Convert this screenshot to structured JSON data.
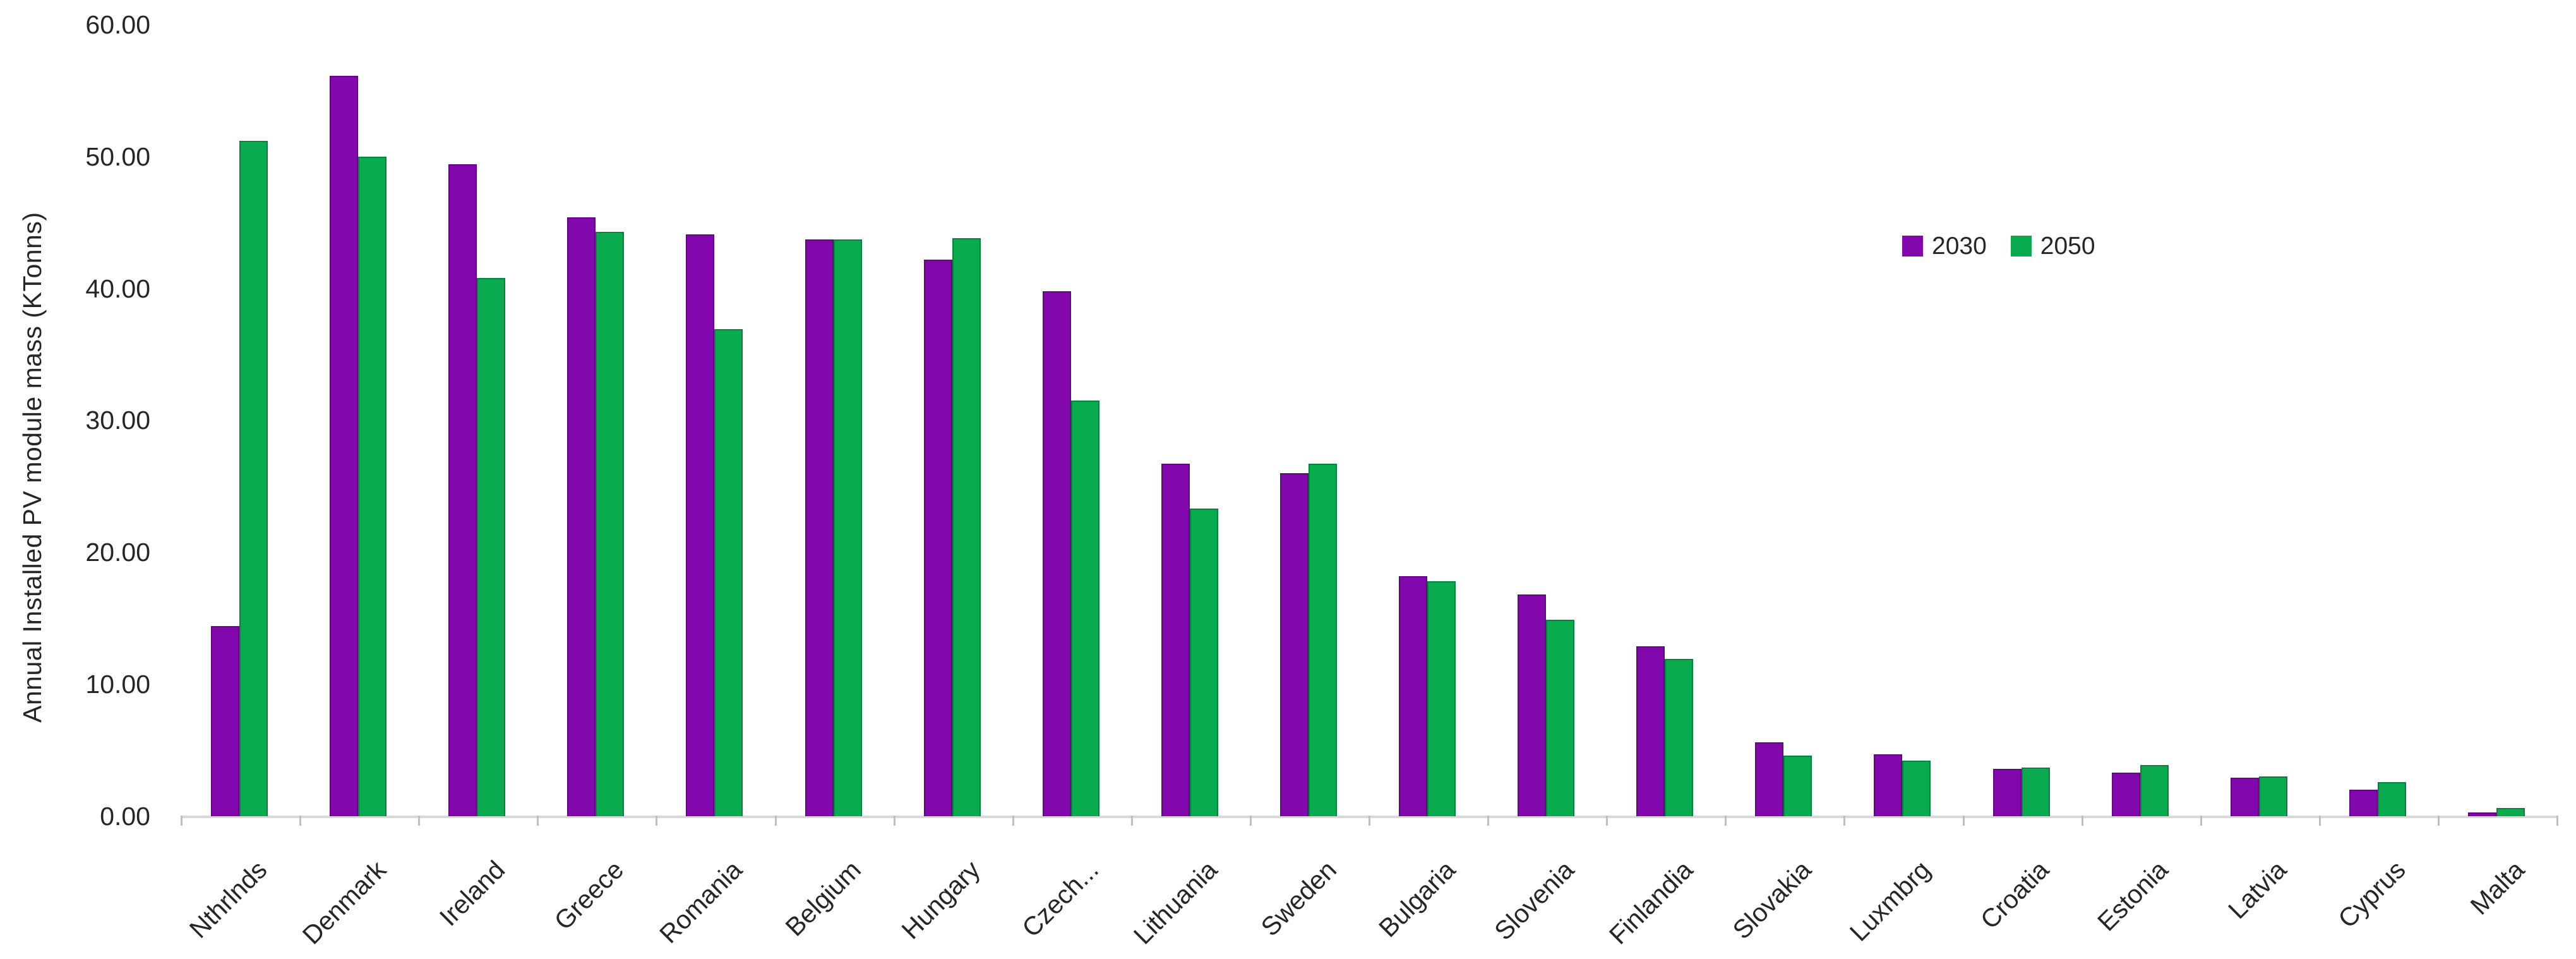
{
  "chart_data": {
    "type": "bar",
    "title": "",
    "xlabel": "",
    "ylabel": "Annual Installed PV module mass (KTonns)",
    "ylim": [
      0,
      60
    ],
    "ytick_step": 10,
    "ytick_labels": [
      "0.00",
      "10.00",
      "20.00",
      "30.00",
      "40.00",
      "50.00",
      "60.00"
    ],
    "grid": false,
    "legend_position": "upper-right",
    "categories": [
      "Nthrlnds",
      "Denmark",
      "Ireland",
      "Greece",
      "Romania",
      "Belgium",
      "Hungary",
      "Czech...",
      "Lithuania",
      "Sweden",
      "Bulgaria",
      "Slovenia",
      "Finlandia",
      "Slovakia",
      "Luxmbrg",
      "Croatia",
      "Estonia",
      "Latvia",
      "Cyprus",
      "Malta"
    ],
    "series": [
      {
        "name": "2030",
        "color": "#8207AC",
        "border_color": "#5E0980",
        "values": [
          14.4,
          56.1,
          49.4,
          45.4,
          44.1,
          43.7,
          42.2,
          39.8,
          26.7,
          26.0,
          18.2,
          16.8,
          12.9,
          5.6,
          4.7,
          3.6,
          3.3,
          2.9,
          2.0,
          0.3
        ]
      },
      {
        "name": "2050",
        "color": "#0AAB4E",
        "border_color": "#07813E",
        "values": [
          51.2,
          50.0,
          40.8,
          44.3,
          36.9,
          43.7,
          43.8,
          31.5,
          23.3,
          26.7,
          17.8,
          14.9,
          11.9,
          4.6,
          4.2,
          3.7,
          3.9,
          3.0,
          2.6,
          0.6
        ]
      }
    ]
  },
  "colors": {
    "background": "#ffffff",
    "text": "#262626",
    "axis_line": "#d9d9d9",
    "tick": "#bfbfbf"
  }
}
